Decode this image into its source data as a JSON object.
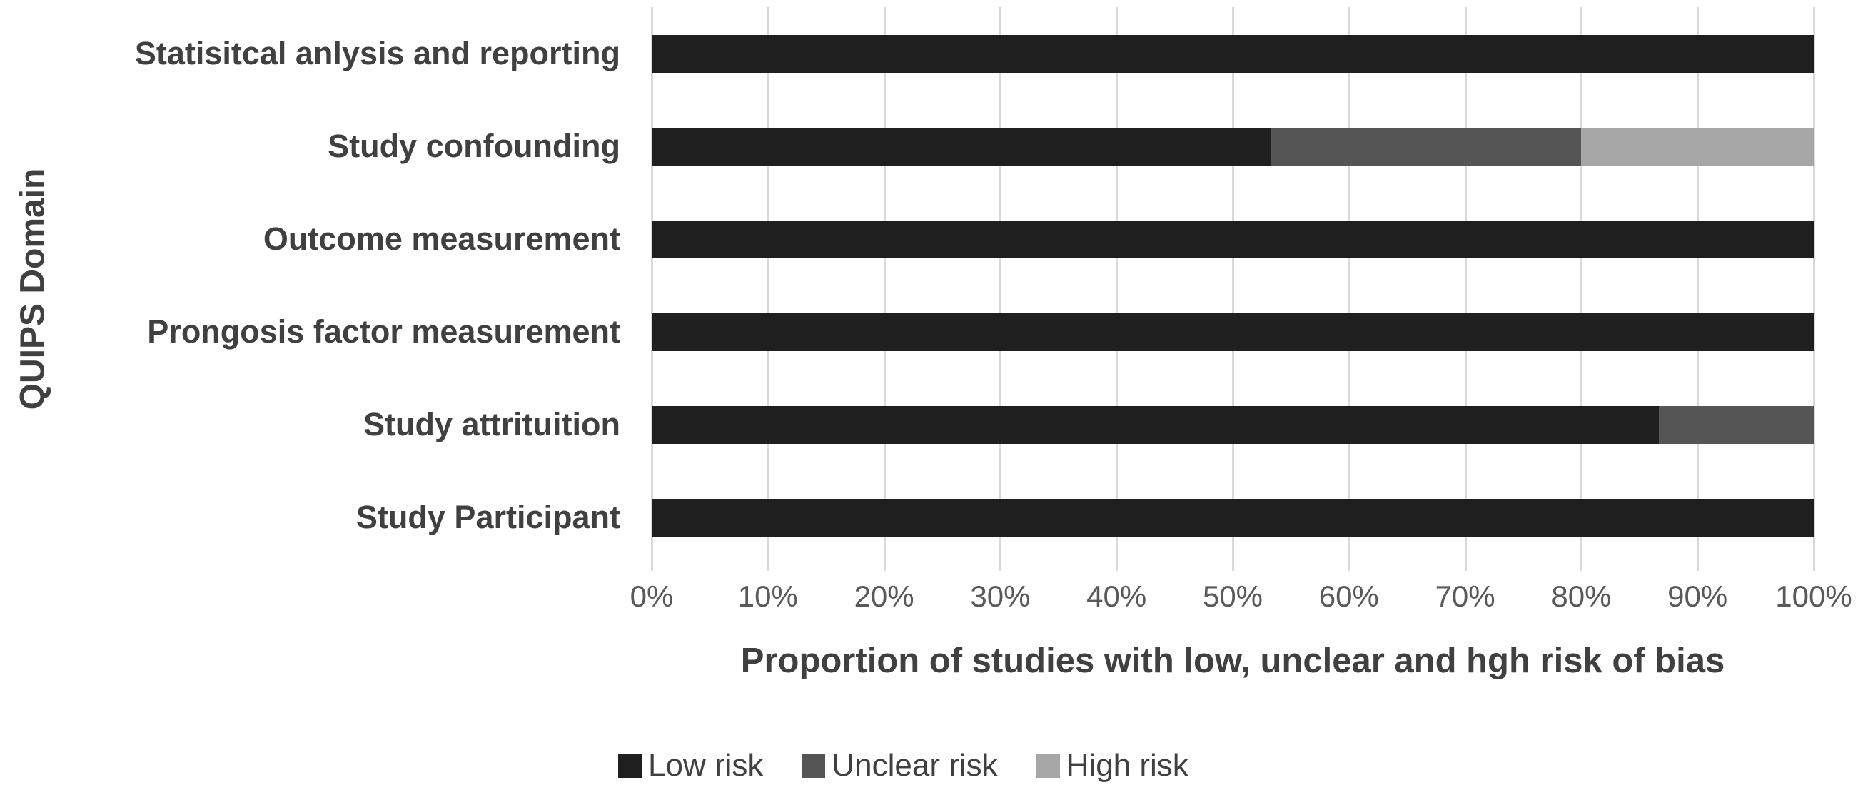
{
  "chart_data": {
    "type": "bar",
    "orientation": "horizontal",
    "stacked": true,
    "title": "",
    "xlabel": "Proportion of studies with low, unclear and hgh risk of bias",
    "ylabel": "QUIPS Domain",
    "categories": [
      "Statisitcal anlysis and reporting",
      "Study confounding",
      "Outcome measurement",
      "Prongosis factor measurement",
      "Study attrituition",
      "Study Participant"
    ],
    "series": [
      {
        "name": "Low risk",
        "color": "#1f1f1f",
        "values": [
          100,
          53.3,
          100,
          100,
          86.7,
          100
        ]
      },
      {
        "name": "Unclear risk",
        "color": "#555555",
        "values": [
          0,
          26.7,
          0,
          0,
          13.3,
          0
        ]
      },
      {
        "name": "High risk",
        "color": "#a6a6a6",
        "values": [
          0,
          20.0,
          0,
          0,
          0,
          0
        ]
      }
    ],
    "xlim": [
      0,
      100
    ],
    "x_ticks": [
      "0%",
      "10%",
      "20%",
      "30%",
      "40%",
      "50%",
      "60%",
      "70%",
      "80%",
      "90%",
      "100%"
    ],
    "grid": "vertical",
    "legend_position": "bottom",
    "colors": {
      "background": "#ffffff",
      "grid": "#d9d9d9",
      "text": "#404040",
      "tick_text": "#595959"
    }
  }
}
